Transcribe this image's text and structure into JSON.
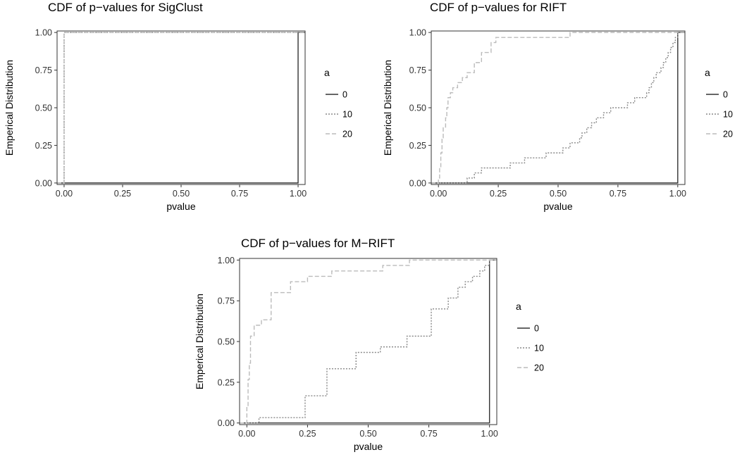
{
  "chart_data": [
    {
      "type": "line",
      "title": "CDF of p−values for SigClust",
      "xlabel": "pvalue",
      "ylabel": "Emperical Distribution",
      "xlim": [
        -0.03,
        1.03
      ],
      "ylim": [
        -0.01,
        1.01
      ],
      "xticks": [
        0.0,
        0.25,
        0.5,
        0.75,
        1.0
      ],
      "xtick_labels": [
        "0.00",
        "0.25",
        "0.50",
        "0.75",
        "1.00"
      ],
      "yticks": [
        0.0,
        0.25,
        0.5,
        0.75,
        1.0
      ],
      "ytick_labels": [
        "0.00",
        "0.25",
        "0.50",
        "0.75",
        "1.00"
      ],
      "grid": false,
      "legend": {
        "title": "a",
        "position": "right"
      },
      "series": [
        {
          "name": "0",
          "style": "solid",
          "color": "#333333",
          "steps": [
            [
              1.0,
              1.0
            ]
          ]
        },
        {
          "name": "10",
          "style": "dotted",
          "color": "#888888",
          "steps": [
            [
              0.0,
              1.0
            ]
          ]
        },
        {
          "name": "20",
          "style": "dashed",
          "color": "#bbbbbb",
          "steps": [
            [
              0.0,
              1.0
            ]
          ]
        }
      ]
    },
    {
      "type": "line",
      "title": "CDF of p−values for RIFT",
      "xlabel": "pvalue",
      "ylabel": "Emperical Distribution",
      "xlim": [
        -0.03,
        1.03
      ],
      "ylim": [
        -0.01,
        1.01
      ],
      "xticks": [
        0.0,
        0.25,
        0.5,
        0.75,
        1.0
      ],
      "xtick_labels": [
        "0.00",
        "0.25",
        "0.50",
        "0.75",
        "1.00"
      ],
      "yticks": [
        0.0,
        0.25,
        0.5,
        0.75,
        1.0
      ],
      "ytick_labels": [
        "0.00",
        "0.25",
        "0.50",
        "0.75",
        "1.00"
      ],
      "grid": false,
      "legend": {
        "title": "a",
        "position": "right"
      },
      "series": [
        {
          "name": "0",
          "style": "solid",
          "color": "#333333",
          "steps": [
            [
              1.0,
              1.0
            ]
          ]
        },
        {
          "name": "10",
          "style": "dotted",
          "color": "#888888",
          "steps": [
            [
              0.12,
              0.033
            ],
            [
              0.15,
              0.067
            ],
            [
              0.18,
              0.1
            ],
            [
              0.3,
              0.133
            ],
            [
              0.36,
              0.167
            ],
            [
              0.45,
              0.2
            ],
            [
              0.52,
              0.233
            ],
            [
              0.55,
              0.267
            ],
            [
              0.59,
              0.3
            ],
            [
              0.6,
              0.333
            ],
            [
              0.62,
              0.367
            ],
            [
              0.64,
              0.4
            ],
            [
              0.66,
              0.433
            ],
            [
              0.69,
              0.467
            ],
            [
              0.72,
              0.5
            ],
            [
              0.79,
              0.533
            ],
            [
              0.82,
              0.567
            ],
            [
              0.87,
              0.6
            ],
            [
              0.88,
              0.633
            ],
            [
              0.89,
              0.667
            ],
            [
              0.9,
              0.7
            ],
            [
              0.91,
              0.733
            ],
            [
              0.93,
              0.767
            ],
            [
              0.94,
              0.8
            ],
            [
              0.95,
              0.833
            ],
            [
              0.96,
              0.867
            ],
            [
              0.97,
              0.9
            ],
            [
              0.98,
              0.933
            ],
            [
              0.99,
              0.967
            ],
            [
              1.0,
              1.0
            ]
          ]
        },
        {
          "name": "20",
          "style": "dashed",
          "color": "#bbbbbb",
          "steps": [
            [
              0.0,
              0.033
            ],
            [
              0.005,
              0.1
            ],
            [
              0.01,
              0.2
            ],
            [
              0.015,
              0.3
            ],
            [
              0.02,
              0.367
            ],
            [
              0.03,
              0.433
            ],
            [
              0.035,
              0.5
            ],
            [
              0.04,
              0.567
            ],
            [
              0.05,
              0.6
            ],
            [
              0.06,
              0.633
            ],
            [
              0.08,
              0.667
            ],
            [
              0.1,
              0.7
            ],
            [
              0.12,
              0.733
            ],
            [
              0.15,
              0.8
            ],
            [
              0.18,
              0.867
            ],
            [
              0.22,
              0.933
            ],
            [
              0.24,
              0.967
            ],
            [
              0.55,
              1.0
            ]
          ]
        }
      ]
    },
    {
      "type": "line",
      "title": "CDF of p−values for M−RIFT",
      "xlabel": "pvalue",
      "ylabel": "Emperical Distribution",
      "xlim": [
        -0.03,
        1.03
      ],
      "ylim": [
        -0.01,
        1.01
      ],
      "xticks": [
        0.0,
        0.25,
        0.5,
        0.75,
        1.0
      ],
      "xtick_labels": [
        "0.00",
        "0.25",
        "0.50",
        "0.75",
        "1.00"
      ],
      "yticks": [
        0.0,
        0.25,
        0.5,
        0.75,
        1.0
      ],
      "ytick_labels": [
        "0.00",
        "0.25",
        "0.50",
        "0.75",
        "1.00"
      ],
      "grid": false,
      "legend": {
        "title": "a",
        "position": "right"
      },
      "series": [
        {
          "name": "0",
          "style": "solid",
          "color": "#333333",
          "steps": [
            [
              1.0,
              1.0
            ]
          ]
        },
        {
          "name": "10",
          "style": "dotted",
          "color": "#888888",
          "steps": [
            [
              0.05,
              0.033
            ],
            [
              0.24,
              0.167
            ],
            [
              0.33,
              0.333
            ],
            [
              0.45,
              0.433
            ],
            [
              0.55,
              0.467
            ],
            [
              0.66,
              0.533
            ],
            [
              0.76,
              0.7
            ],
            [
              0.83,
              0.767
            ],
            [
              0.87,
              0.833
            ],
            [
              0.9,
              0.867
            ],
            [
              0.93,
              0.9
            ],
            [
              0.96,
              0.933
            ],
            [
              0.98,
              0.967
            ],
            [
              1.0,
              1.0
            ]
          ]
        },
        {
          "name": "20",
          "style": "dashed",
          "color": "#bbbbbb",
          "steps": [
            [
              0.0,
              0.1
            ],
            [
              0.005,
              0.267
            ],
            [
              0.01,
              0.367
            ],
            [
              0.015,
              0.533
            ],
            [
              0.03,
              0.6
            ],
            [
              0.06,
              0.633
            ],
            [
              0.1,
              0.8
            ],
            [
              0.18,
              0.867
            ],
            [
              0.25,
              0.9
            ],
            [
              0.35,
              0.933
            ],
            [
              0.56,
              0.967
            ],
            [
              0.67,
              1.0
            ]
          ]
        }
      ]
    }
  ]
}
